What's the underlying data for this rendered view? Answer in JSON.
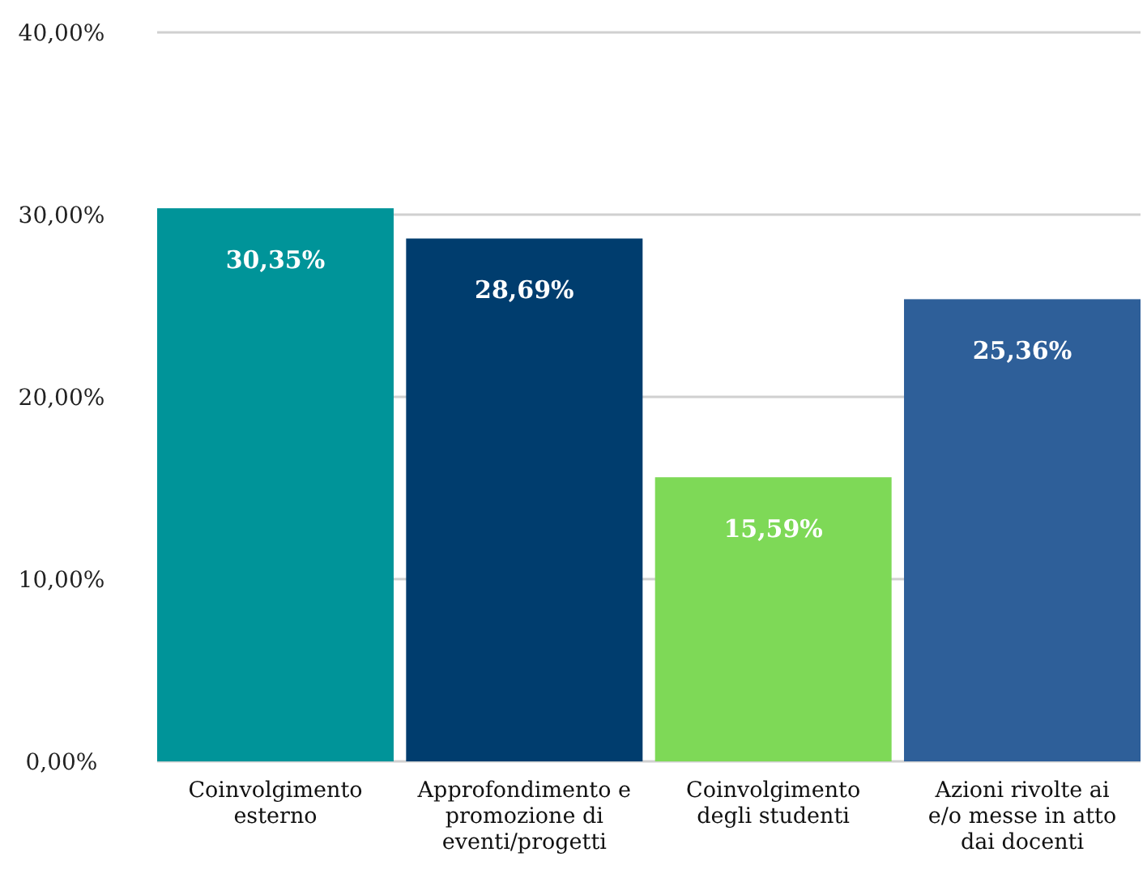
{
  "chart_data": {
    "type": "bar",
    "categories": [
      "Coinvolgimento esterno",
      "Approfondimento e promozione di eventi/progetti",
      "Coinvolgimento degli studenti",
      "Azioni rivolte ai e/o messe in atto dai docenti"
    ],
    "values": [
      30.35,
      28.69,
      15.59,
      25.36
    ],
    "colors": [
      "#009499",
      "#003d6e",
      "#7ed957",
      "#2e5f99"
    ],
    "value_labels": [
      "30,35%",
      "28,69%",
      "15,59%",
      "25,36%"
    ],
    "ylim": [
      0,
      40
    ],
    "yticks": [
      {
        "value": 0,
        "label": "0,00%"
      },
      {
        "value": 10,
        "label": "10,00%"
      },
      {
        "value": 20,
        "label": "20,00%"
      },
      {
        "value": 30,
        "label": "30,00%"
      },
      {
        "value": 40,
        "label": "40,00%"
      }
    ],
    "grid": "y"
  }
}
